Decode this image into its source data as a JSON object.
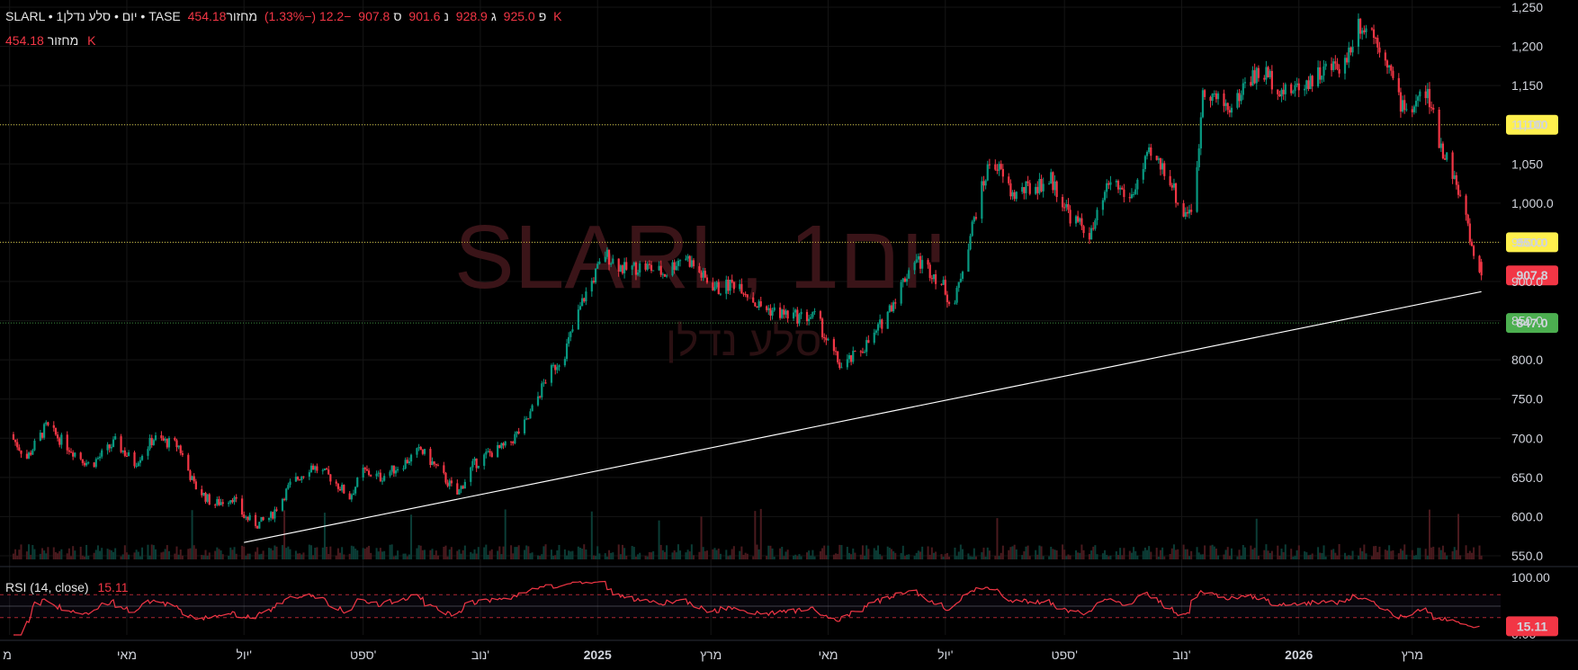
{
  "header": {
    "symbol_title": "SLARL • 1יום • סלע נדלן • TASE",
    "open_label": "פ",
    "open": "925.0",
    "high_label": "ג",
    "high": "928.9",
    "low_label": "נ",
    "low": "901.6",
    "close_label": "ס",
    "close": "907.8",
    "change": "−12.2 (−1.33%)",
    "volume_label": "מחזור",
    "volume": "454.18 K",
    "volume_row_label": "מחזור",
    "volume_row_value": "454.18 K"
  },
  "watermark": {
    "main": "SLARL, 1יום",
    "sub": "סלע נדלן"
  },
  "rsi_legend": {
    "label": "RSI (14, close)",
    "value": "15.11"
  },
  "colors": {
    "up": "#089981",
    "down": "#f23645",
    "background": "#000000",
    "rsi": "#f23645",
    "hline_yellow": "#fff04d",
    "hline_green": "#4caf50"
  },
  "chart_data": {
    "type": "candlestick",
    "symbol": "SLARL",
    "exchange": "TASE",
    "interval": "1יום",
    "y_axis": {
      "range": [
        550,
        1250
      ],
      "ticks": [
        "1,250",
        "1,200",
        "1,150",
        "1,100",
        "1,050",
        "1,000.0",
        "950.0",
        "900.0",
        "850.0",
        "800.0",
        "750.0",
        "700.0",
        "650.0",
        "600.0",
        "550.0"
      ]
    },
    "x_axis": {
      "ticks": [
        "מ",
        "מאי",
        "יול'",
        "ספט'",
        "נוב'",
        "2025",
        "מרץ",
        "מאי",
        "יול'",
        "ספט'",
        "נוב'",
        "2026",
        "מרץ"
      ]
    },
    "price_path": [
      [
        "2024-03-01",
        705
      ],
      [
        "2024-03-10",
        675
      ],
      [
        "2024-03-20",
        715
      ],
      [
        "2024-04-01",
        688
      ],
      [
        "2024-04-12",
        665
      ],
      [
        "2024-04-25",
        695
      ],
      [
        "2024-05-05",
        668
      ],
      [
        "2024-05-15",
        700
      ],
      [
        "2024-05-28",
        690
      ],
      [
        "2024-06-05",
        640
      ],
      [
        "2024-06-15",
        615
      ],
      [
        "2024-06-25",
        625
      ],
      [
        "2024-07-01",
        600
      ],
      [
        "2024-07-08",
        590
      ],
      [
        "2024-07-15",
        600
      ],
      [
        "2024-07-25",
        640
      ],
      [
        "2024-08-05",
        665
      ],
      [
        "2024-08-15",
        650
      ],
      [
        "2024-08-25",
        625
      ],
      [
        "2024-09-01",
        658
      ],
      [
        "2024-09-10",
        650
      ],
      [
        "2024-09-22",
        668
      ],
      [
        "2024-10-01",
        685
      ],
      [
        "2024-10-10",
        660
      ],
      [
        "2024-10-20",
        628
      ],
      [
        "2024-10-28",
        665
      ],
      [
        "2024-11-05",
        680
      ],
      [
        "2024-11-15",
        690
      ],
      [
        "2024-11-25",
        720
      ],
      [
        "2024-12-05",
        775
      ],
      [
        "2024-12-15",
        810
      ],
      [
        "2024-12-25",
        880
      ],
      [
        "2025-01-05",
        935
      ],
      [
        "2025-01-15",
        915
      ],
      [
        "2025-01-25",
        920
      ],
      [
        "2025-02-05",
        910
      ],
      [
        "2025-02-15",
        935
      ],
      [
        "2025-02-25",
        905
      ],
      [
        "2025-03-05",
        890
      ],
      [
        "2025-03-15",
        900
      ],
      [
        "2025-03-25",
        870
      ],
      [
        "2025-04-05",
        860
      ],
      [
        "2025-04-15",
        855
      ],
      [
        "2025-04-25",
        855
      ],
      [
        "2025-05-01",
        820
      ],
      [
        "2025-05-08",
        790
      ],
      [
        "2025-05-15",
        805
      ],
      [
        "2025-05-25",
        830
      ],
      [
        "2025-06-05",
        880
      ],
      [
        "2025-06-15",
        930
      ],
      [
        "2025-06-25",
        910
      ],
      [
        "2025-07-01",
        890
      ],
      [
        "2025-07-05",
        860
      ],
      [
        "2025-07-10",
        920
      ],
      [
        "2025-07-18",
        1000
      ],
      [
        "2025-07-25",
        1060
      ],
      [
        "2025-08-05",
        1010
      ],
      [
        "2025-08-15",
        1020
      ],
      [
        "2025-08-25",
        1030
      ],
      [
        "2025-09-05",
        980
      ],
      [
        "2025-09-15",
        960
      ],
      [
        "2025-09-25",
        1030
      ],
      [
        "2025-10-05",
        1005
      ],
      [
        "2025-10-15",
        1060
      ],
      [
        "2025-10-25",
        1040
      ],
      [
        "2025-11-01",
        985
      ],
      [
        "2025-11-08",
        1000
      ],
      [
        "2025-11-12",
        1150
      ],
      [
        "2025-11-20",
        1130
      ],
      [
        "2025-11-28",
        1120
      ],
      [
        "2025-12-05",
        1160
      ],
      [
        "2025-12-15",
        1165
      ],
      [
        "2025-12-25",
        1140
      ],
      [
        "2026-01-05",
        1155
      ],
      [
        "2026-01-15",
        1170
      ],
      [
        "2026-01-25",
        1180
      ],
      [
        "2026-02-01",
        1230
      ],
      [
        "2026-02-08",
        1220
      ],
      [
        "2026-02-15",
        1190
      ],
      [
        "2026-02-22",
        1130
      ],
      [
        "2026-03-01",
        1120
      ],
      [
        "2026-03-08",
        1145
      ],
      [
        "2026-03-15",
        1080
      ],
      [
        "2026-03-22",
        1040
      ],
      [
        "2026-03-29",
        980
      ],
      [
        "2026-04-03",
        920
      ],
      [
        "2026-04-06",
        907.8
      ]
    ],
    "last": {
      "open": 925.0,
      "high": 928.9,
      "low": 901.6,
      "close": 907.8,
      "change": -12.2,
      "change_pct": -1.33,
      "volume": "454.18K"
    },
    "horizontal_lines": [
      {
        "value": 1100,
        "label": "1,100",
        "color": "#fff04d",
        "style": "dotted"
      },
      {
        "value": 950,
        "label": "950.0",
        "color": "#fff04d",
        "style": "dotted"
      },
      {
        "value": 847,
        "label": "847.0",
        "color": "#4caf50",
        "style": "dotted"
      }
    ],
    "price_label": {
      "value": 907.8,
      "label": "907.8",
      "color": "#f23645"
    },
    "trendline": {
      "from": [
        "2024-07-01",
        567
      ],
      "to": [
        "2026-04-06",
        887
      ],
      "color": "#ffffff"
    },
    "rsi": {
      "period": 14,
      "source": "close",
      "value": 15.11,
      "value_label": "15.11",
      "range": [
        0,
        100
      ],
      "top_tick": "100.00",
      "bottom_tick": "0.00",
      "overbought": 70,
      "oversold": 30,
      "middle": 50
    }
  }
}
